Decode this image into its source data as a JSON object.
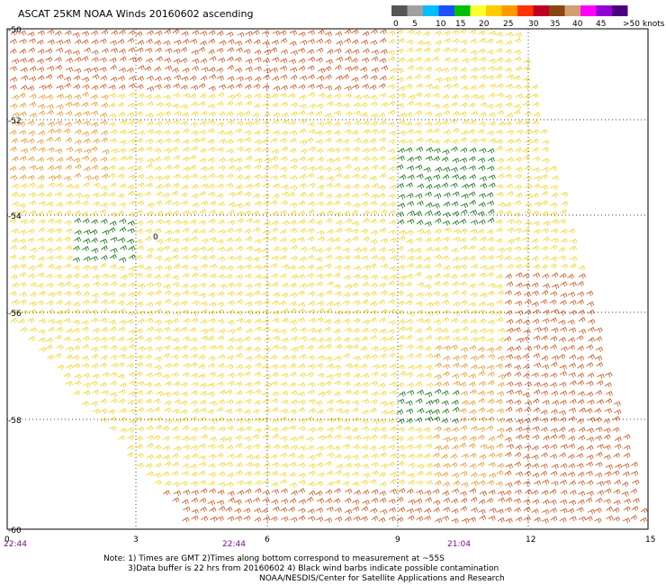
{
  "title": "ASCAT 25KM NOAA Winds 20160602 ascending",
  "legend": {
    "bins": [
      {
        "color": "#555555"
      },
      {
        "color": "#a0a0a0"
      },
      {
        "color": "#00bfff"
      },
      {
        "color": "#1e50ff"
      },
      {
        "color": "#00c000"
      },
      {
        "color": "#ffff30"
      },
      {
        "color": "#ffcc00"
      },
      {
        "color": "#ff9900"
      },
      {
        "color": "#ff3300"
      },
      {
        "color": "#c00020"
      },
      {
        "color": "#8b4513"
      },
      {
        "color": "#d2a070"
      },
      {
        "color": "#ff00ff"
      },
      {
        "color": "#9400d3"
      },
      {
        "color": "#4b0082"
      }
    ],
    "labels": [
      "0",
      "5",
      "10",
      "15",
      "20",
      "25",
      "30",
      "35",
      "40",
      "45",
      ">50 knots"
    ],
    "unit": "knots"
  },
  "axes": {
    "lat_ticks": [
      "-50",
      "-52",
      "-54",
      "-56",
      "-58",
      "-60"
    ],
    "lon_ticks": [
      "0",
      "3",
      "6",
      "9",
      "12",
      "15"
    ],
    "time_labels": [
      "22:44",
      "22:44",
      "21:04"
    ],
    "grid": true
  },
  "special_mark": "0",
  "notes": {
    "line1": "Note: 1) Times are GMT 2)Times along bottom correspond to measurement at ~55S",
    "line2": "3)Data buffer is 22 hrs from 20160602 4) Black wind barbs indicate possible contamination",
    "line3": "NOAA/NESDIS/Center for Satellite Applications and Research"
  },
  "colors": {
    "barb_yellow": "#f2d21a",
    "barb_orange": "#e8901a",
    "barb_darkorange": "#c8501a",
    "barb_green": "#0a6e0a",
    "grid": "#000000"
  }
}
